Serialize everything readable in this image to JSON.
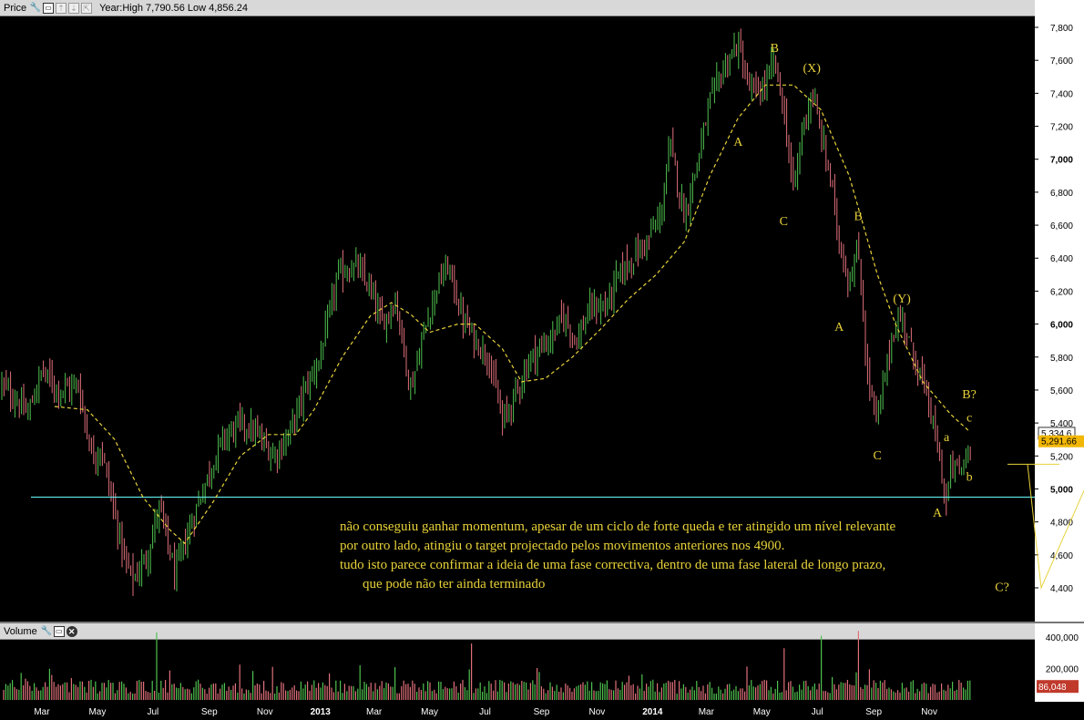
{
  "panels": {
    "price": {
      "label": "Price",
      "info": "Year:High 7,790.56 Low 4,856.24",
      "last_badge": "5,334.6",
      "ma_badge": "5,291.66",
      "yticks": [
        {
          "v": 7800,
          "t": "7,800"
        },
        {
          "v": 7600,
          "t": "7,600"
        },
        {
          "v": 7400,
          "t": "7,400"
        },
        {
          "v": 7200,
          "t": "7,200"
        },
        {
          "v": 7000,
          "t": "7,000",
          "bold": true
        },
        {
          "v": 6800,
          "t": "6,800"
        },
        {
          "v": 6600,
          "t": "6,600"
        },
        {
          "v": 6400,
          "t": "6,400"
        },
        {
          "v": 6200,
          "t": "6,200"
        },
        {
          "v": 6000,
          "t": "6,000",
          "bold": true
        },
        {
          "v": 5800,
          "t": "5,800"
        },
        {
          "v": 5600,
          "t": "5,600"
        },
        {
          "v": 5400,
          "t": "5,400"
        },
        {
          "v": 5200,
          "t": "5,200"
        },
        {
          "v": 5000,
          "t": "5,000",
          "bold": true
        },
        {
          "v": 4800,
          "t": "4,800"
        },
        {
          "v": 4600,
          "t": "4,600"
        },
        {
          "v": 4400,
          "t": "4,400"
        }
      ]
    },
    "volume": {
      "label": "Volume",
      "last_badge": "86,048",
      "yticks": [
        {
          "v": 400000,
          "t": "400,000"
        },
        {
          "v": 200000,
          "t": "200,000"
        }
      ]
    }
  },
  "notes": [
    "não conseguiu ganhar momentum, apesar de um ciclo de forte queda e ter atingido um nível relevante",
    "por outro lado, atingiu o target projectado pelos movimentos anteriores nos 4900.",
    "tudo isto parece confirmar a ideia de uma fase correctiva, dentro de uma fase lateral de longo prazo,",
    "que pode não ter ainda terminado"
  ],
  "colors": {
    "up": "#4fc24f",
    "down": "#e0707a",
    "ma": "#e8d23a",
    "support": "#5fe0e0",
    "annotation": "#e8d23a"
  },
  "chart_data": {
    "type": "candlestick",
    "xlabels": [
      {
        "t": "Mar",
        "x": "2012-03"
      },
      {
        "t": "May",
        "x": "2012-05"
      },
      {
        "t": "Jul",
        "x": "2012-07"
      },
      {
        "t": "Sep",
        "x": "2012-09"
      },
      {
        "t": "Nov",
        "x": "2012-11"
      },
      {
        "t": "2013",
        "x": "2013-01",
        "bold": true
      },
      {
        "t": "Mar",
        "x": "2013-03"
      },
      {
        "t": "May",
        "x": "2013-05"
      },
      {
        "t": "Jul",
        "x": "2013-07"
      },
      {
        "t": "Sep",
        "x": "2013-09"
      },
      {
        "t": "Nov",
        "x": "2013-11"
      },
      {
        "t": "2014",
        "x": "2014-01",
        "bold": true
      },
      {
        "t": "Mar",
        "x": "2014-03"
      },
      {
        "t": "May",
        "x": "2014-05"
      },
      {
        "t": "Jul",
        "x": "2014-07"
      },
      {
        "t": "Sep",
        "x": "2014-09"
      },
      {
        "t": "Nov",
        "x": "2014-11"
      }
    ],
    "ylim": [
      4300,
      7850
    ],
    "price_path": [
      [
        "2012-01-15",
        5650
      ],
      [
        "2012-02-15",
        5450
      ],
      [
        "2012-03-01",
        5720
      ],
      [
        "2012-03-20",
        5600
      ],
      [
        "2012-04-10",
        5630
      ],
      [
        "2012-04-25",
        5200
      ],
      [
        "2012-05-05",
        5250
      ],
      [
        "2012-05-20",
        4850
      ],
      [
        "2012-06-01",
        4550
      ],
      [
        "2012-06-10",
        4450
      ],
      [
        "2012-06-25",
        4600
      ],
      [
        "2012-07-08",
        4900
      ],
      [
        "2012-07-25",
        4480
      ],
      [
        "2012-08-10",
        4750
      ],
      [
        "2012-08-25",
        5000
      ],
      [
        "2012-09-15",
        5300
      ],
      [
        "2012-10-05",
        5400
      ],
      [
        "2012-10-20",
        5350
      ],
      [
        "2012-11-10",
        5200
      ],
      [
        "2012-11-25",
        5300
      ],
      [
        "2012-12-15",
        5600
      ],
      [
        "2013-01-01",
        5800
      ],
      [
        "2013-01-20",
        6300
      ],
      [
        "2013-02-10",
        6350
      ],
      [
        "2013-02-25",
        6200
      ],
      [
        "2013-03-10",
        6000
      ],
      [
        "2013-03-25",
        6150
      ],
      [
        "2013-04-10",
        5600
      ],
      [
        "2013-04-25",
        5950
      ],
      [
        "2013-05-10",
        6250
      ],
      [
        "2013-05-22",
        6350
      ],
      [
        "2013-06-05",
        6050
      ],
      [
        "2013-06-20",
        5900
      ],
      [
        "2013-07-05",
        5800
      ],
      [
        "2013-07-20",
        5400
      ],
      [
        "2013-08-05",
        5600
      ],
      [
        "2013-08-20",
        5800
      ],
      [
        "2013-09-10",
        5900
      ],
      [
        "2013-09-25",
        6050
      ],
      [
        "2013-10-10",
        5900
      ],
      [
        "2013-10-25",
        6100
      ],
      [
        "2013-11-10",
        6100
      ],
      [
        "2013-11-25",
        6300
      ],
      [
        "2013-12-10",
        6400
      ],
      [
        "2013-12-25",
        6500
      ],
      [
        "2014-01-10",
        6650
      ],
      [
        "2014-01-20",
        7100
      ],
      [
        "2014-02-05",
        6650
      ],
      [
        "2014-02-20",
        7000
      ],
      [
        "2014-03-05",
        7350
      ],
      [
        "2014-03-20",
        7550
      ],
      [
        "2014-04-05",
        7700
      ],
      [
        "2014-04-15",
        7450
      ],
      [
        "2014-04-25",
        7400
      ],
      [
        "2014-05-05",
        7450
      ],
      [
        "2014-05-15",
        7600
      ],
      [
        "2014-05-25",
        7300
      ],
      [
        "2014-06-05",
        6800
      ],
      [
        "2014-06-15",
        7200
      ],
      [
        "2014-06-25",
        7400
      ],
      [
        "2014-07-05",
        7150
      ],
      [
        "2014-07-15",
        6900
      ],
      [
        "2014-07-25",
        6500
      ],
      [
        "2014-08-05",
        6250
      ],
      [
        "2014-08-15",
        6450
      ],
      [
        "2014-08-25",
        5700
      ],
      [
        "2014-09-05",
        5400
      ],
      [
        "2014-09-12",
        5650
      ],
      [
        "2014-09-22",
        5950
      ],
      [
        "2014-10-02",
        6050
      ],
      [
        "2014-10-12",
        5850
      ],
      [
        "2014-10-22",
        5700
      ],
      [
        "2014-11-01",
        5500
      ],
      [
        "2014-11-10",
        5250
      ],
      [
        "2014-11-20",
        4900
      ],
      [
        "2014-11-25",
        5150
      ],
      [
        "2014-12-05",
        5100
      ],
      [
        "2014-12-15",
        5250
      ]
    ],
    "moving_average": [
      [
        "2012-03-15",
        5500
      ],
      [
        "2012-04-20",
        5480
      ],
      [
        "2012-05-20",
        5300
      ],
      [
        "2012-06-20",
        4950
      ],
      [
        "2012-07-20",
        4750
      ],
      [
        "2012-08-05",
        4670
      ],
      [
        "2012-09-05",
        4920
      ],
      [
        "2012-10-05",
        5200
      ],
      [
        "2012-11-05",
        5330
      ],
      [
        "2012-12-05",
        5330
      ],
      [
        "2012-12-25",
        5480
      ],
      [
        "2013-01-25",
        5800
      ],
      [
        "2013-02-25",
        6050
      ],
      [
        "2013-03-20",
        6130
      ],
      [
        "2013-04-10",
        6060
      ],
      [
        "2013-05-01",
        5950
      ],
      [
        "2013-06-01",
        6000
      ],
      [
        "2013-06-20",
        6000
      ],
      [
        "2013-07-20",
        5850
      ],
      [
        "2013-08-10",
        5650
      ],
      [
        "2013-09-05",
        5670
      ],
      [
        "2013-10-05",
        5800
      ],
      [
        "2013-11-05",
        5970
      ],
      [
        "2013-12-05",
        6150
      ],
      [
        "2014-01-05",
        6300
      ],
      [
        "2014-02-05",
        6500
      ],
      [
        "2014-03-05",
        6900
      ],
      [
        "2014-04-05",
        7250
      ],
      [
        "2014-05-05",
        7450
      ],
      [
        "2014-06-05",
        7450
      ],
      [
        "2014-07-05",
        7300
      ],
      [
        "2014-08-05",
        6900
      ],
      [
        "2014-09-05",
        6300
      ],
      [
        "2014-09-25",
        6000
      ],
      [
        "2014-10-25",
        5650
      ],
      [
        "2014-11-25",
        5450
      ],
      [
        "2014-12-15",
        5350
      ]
    ],
    "last_price": 5334.6,
    "moving_average_last": 5291.66,
    "year_high": 7790.56,
    "year_low": 4856.24,
    "support_level": 4950,
    "annotations": [
      {
        "t": "B",
        "x": "2014-05-15",
        "y": 7650
      },
      {
        "t": "(X)",
        "x": "2014-06-25",
        "y": 7530
      },
      {
        "t": "A",
        "x": "2014-04-05",
        "y": 7080
      },
      {
        "t": "C",
        "x": "2014-05-25",
        "y": 6600
      },
      {
        "t": "B",
        "x": "2014-08-15",
        "y": 6630
      },
      {
        "t": "(Y)",
        "x": "2014-10-02",
        "y": 6130
      },
      {
        "t": "A",
        "x": "2014-07-25",
        "y": 5960
      },
      {
        "t": "C",
        "x": "2014-09-05",
        "y": 5180
      },
      {
        "t": "B?",
        "x": "2014-12-15",
        "y": 5550
      },
      {
        "t": "c",
        "x": "2014-12-15",
        "y": 5410
      },
      {
        "t": "a",
        "x": "2014-11-20",
        "y": 5290
      },
      {
        "t": "b",
        "x": "2014-12-15",
        "y": 5050
      },
      {
        "t": "A",
        "x": "2014-11-10",
        "y": 4830
      },
      {
        "t": "C?",
        "x": "2015-01-20",
        "y": 4380
      }
    ],
    "projection": [
      [
        "2014-12-10",
        5150
      ],
      [
        "2015-01-15",
        4450
      ],
      [
        "2015-02-15",
        4900
      ]
    ],
    "volume": {
      "ylim": [
        0,
        500000
      ],
      "last": 86048,
      "peaks": [
        {
          "x": "2012-07-05",
          "v": 430000
        },
        {
          "x": "2013-06-15",
          "v": 360000
        },
        {
          "x": "2014-05-25",
          "v": 330000
        },
        {
          "x": "2014-07-05",
          "v": 410000
        },
        {
          "x": "2014-08-15",
          "v": 440000
        }
      ]
    }
  }
}
